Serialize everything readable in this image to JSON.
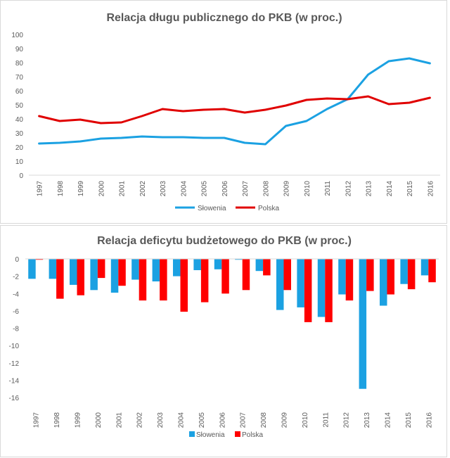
{
  "chart_data": [
    {
      "type": "line",
      "title": "Relacja długu publicznego do PKB (w proc.)",
      "categories": [
        "1997",
        "1998",
        "1999",
        "2000",
        "2001",
        "2002",
        "2003",
        "2004",
        "2005",
        "2006",
        "2007",
        "2008",
        "2009",
        "2010",
        "2011",
        "2012",
        "2013",
        "2014",
        "2015",
        "2016"
      ],
      "series": [
        {
          "name": "Słowenia",
          "color": "#1BA1E2",
          "values": [
            22.5,
            23,
            24,
            26,
            26.5,
            27.5,
            27,
            27,
            26.5,
            26.5,
            23,
            22,
            35,
            38.5,
            47,
            54,
            71.5,
            81,
            83,
            79.5
          ]
        },
        {
          "name": "Polska",
          "color": "#E00000",
          "values": [
            42,
            38.5,
            39.5,
            37,
            37.5,
            42,
            47,
            45.5,
            46.5,
            47,
            44.5,
            46.5,
            49.5,
            53.5,
            54.5,
            54,
            56,
            50.5,
            51.5,
            55
          ]
        }
      ],
      "yticks": [
        "100",
        "90",
        "80",
        "70",
        "60",
        "50",
        "40",
        "30",
        "20",
        "10",
        "0"
      ],
      "ylim": [
        0,
        100
      ],
      "grid": false,
      "legend": "bottom"
    },
    {
      "type": "bar",
      "title": "Relacja deficytu budżetowego do PKB (w proc.)",
      "categories": [
        "1997",
        "1998",
        "1999",
        "2000",
        "2001",
        "2002",
        "2003",
        "2004",
        "2005",
        "2006",
        "2007",
        "2008",
        "2009",
        "2010",
        "2011",
        "2012",
        "2013",
        "2014",
        "2015",
        "2016"
      ],
      "series": [
        {
          "name": "Słowenia",
          "color": "#1BA1E2",
          "values": [
            -2.3,
            -2.3,
            -3.0,
            -3.6,
            -3.9,
            -2.4,
            -2.6,
            -2.0,
            -1.3,
            -1.2,
            -0.1,
            -1.4,
            -5.9,
            -5.6,
            -6.7,
            -4.1,
            -15.0,
            -5.4,
            -2.9,
            -1.9
          ]
        },
        {
          "name": "Polska",
          "color": "#FF0000",
          "values": [
            -0.1,
            -4.6,
            -4.2,
            -2.2,
            -3.1,
            -4.8,
            -4.8,
            -6.1,
            -5.0,
            -4.0,
            -3.6,
            -1.9,
            -3.6,
            -7.3,
            -7.3,
            -4.8,
            -3.7,
            -4.1,
            -3.5,
            -2.7
          ]
        }
      ],
      "yticks": [
        "0",
        "-2",
        "-4",
        "-6",
        "-8",
        "-10",
        "-12",
        "-14",
        "-16"
      ],
      "ylim": [
        -16,
        0
      ],
      "grid": false,
      "legend": "bottom"
    }
  ]
}
